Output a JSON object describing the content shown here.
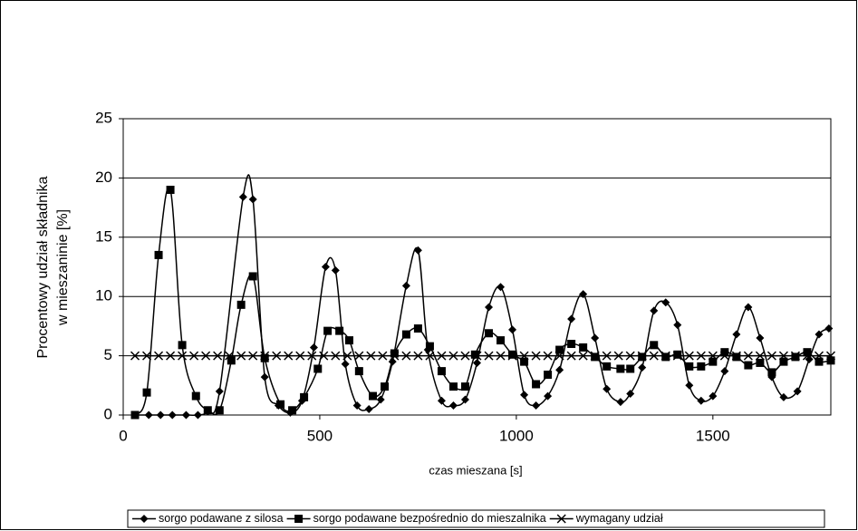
{
  "chart_data": {
    "type": "line",
    "xlabel": "czas mieszana [s]",
    "ylabel": [
      "Procentowy udział składnika",
      "w mieszaninie [%]"
    ],
    "xlim": [
      0,
      1800
    ],
    "xticks": [
      0,
      500,
      1000,
      1500
    ],
    "ylim": [
      0,
      25
    ],
    "yticks": [
      0,
      5,
      10,
      15,
      20,
      25
    ],
    "grid": true,
    "legend": "bottom",
    "series": [
      {
        "name": "sorgo podawane z silosa",
        "color": "#000000",
        "marker": "diamond",
        "x": [
          30,
          65,
          95,
          125,
          160,
          190,
          215,
          245,
          305,
          330,
          360,
          395,
          425,
          455,
          485,
          515,
          540,
          565,
          595,
          625,
          655,
          685,
          720,
          750,
          775,
          810,
          840,
          870,
          900,
          930,
          960,
          990,
          1020,
          1050,
          1080,
          1110,
          1140,
          1170,
          1200,
          1230,
          1265,
          1290,
          1320,
          1350,
          1380,
          1410,
          1440,
          1470,
          1500,
          1530,
          1560,
          1590,
          1620,
          1650,
          1680,
          1715,
          1745,
          1770,
          1795
        ],
        "values": [
          0,
          0,
          0,
          0,
          0,
          0,
          0.3,
          2.0,
          18.4,
          18.2,
          3.2,
          0.8,
          0.2,
          1.2,
          5.7,
          12.5,
          12.2,
          4.3,
          0.8,
          0.5,
          1.3,
          4.5,
          10.9,
          13.9,
          5.5,
          1.2,
          0.8,
          1.3,
          4.4,
          9.1,
          10.8,
          7.2,
          1.7,
          0.8,
          1.6,
          3.8,
          8.1,
          10.2,
          6.5,
          2.2,
          1.1,
          1.8,
          4.0,
          8.8,
          9.5,
          7.6,
          2.5,
          1.2,
          1.6,
          3.7,
          6.8,
          9.1,
          6.5,
          3.2,
          1.5,
          2.0,
          4.7,
          6.8,
          7.3
        ]
      },
      {
        "name": "sorgo podawane bezpośrednio do mieszalnika",
        "color": "#000000",
        "marker": "square",
        "x": [
          30,
          60,
          90,
          120,
          150,
          185,
          215,
          245,
          275,
          300,
          330,
          360,
          400,
          430,
          460,
          495,
          520,
          550,
          575,
          600,
          635,
          665,
          690,
          720,
          750,
          780,
          810,
          840,
          870,
          895,
          930,
          960,
          990,
          1020,
          1050,
          1080,
          1110,
          1140,
          1170,
          1200,
          1230,
          1265,
          1290,
          1320,
          1350,
          1380,
          1410,
          1440,
          1470,
          1500,
          1530,
          1560,
          1590,
          1620,
          1650,
          1680,
          1710,
          1740,
          1770,
          1800
        ],
        "values": [
          0,
          1.9,
          13.5,
          19.0,
          5.9,
          1.6,
          0.4,
          0.4,
          4.6,
          9.3,
          11.7,
          4.8,
          0.9,
          0.4,
          1.5,
          3.9,
          7.1,
          7.1,
          6.3,
          3.7,
          1.6,
          2.4,
          5.2,
          6.8,
          7.3,
          5.8,
          3.7,
          2.4,
          2.4,
          5.1,
          6.9,
          6.3,
          5.1,
          4.5,
          2.6,
          3.4,
          5.5,
          6.0,
          5.7,
          4.9,
          4.1,
          3.9,
          3.9,
          4.9,
          5.9,
          4.9,
          5.1,
          4.1,
          4.1,
          4.5,
          5.3,
          4.9,
          4.2,
          4.4,
          3.6,
          4.5,
          4.9,
          5.3,
          4.5,
          4.6
        ]
      },
      {
        "name": "wymagany udział",
        "color": "#000000",
        "marker": "x",
        "x": [
          30,
          60,
          90,
          120,
          150,
          180,
          210,
          240,
          270,
          300,
          330,
          360,
          390,
          420,
          450,
          480,
          510,
          540,
          570,
          600,
          630,
          660,
          690,
          720,
          750,
          780,
          810,
          840,
          870,
          900,
          930,
          960,
          990,
          1020,
          1050,
          1080,
          1110,
          1140,
          1170,
          1200,
          1230,
          1260,
          1290,
          1320,
          1350,
          1380,
          1410,
          1440,
          1470,
          1500,
          1530,
          1560,
          1590,
          1620,
          1650,
          1680,
          1710,
          1740,
          1770,
          1800
        ],
        "values": [
          5,
          5,
          5,
          5,
          5,
          5,
          5,
          5,
          5,
          5,
          5,
          5,
          5,
          5,
          5,
          5,
          5,
          5,
          5,
          5,
          5,
          5,
          5,
          5,
          5,
          5,
          5,
          5,
          5,
          5,
          5,
          5,
          5,
          5,
          5,
          5,
          5,
          5,
          5,
          5,
          5,
          5,
          5,
          5,
          5,
          5,
          5,
          5,
          5,
          5,
          5,
          5,
          5,
          5,
          5,
          5,
          5,
          5,
          5,
          5
        ]
      }
    ]
  }
}
